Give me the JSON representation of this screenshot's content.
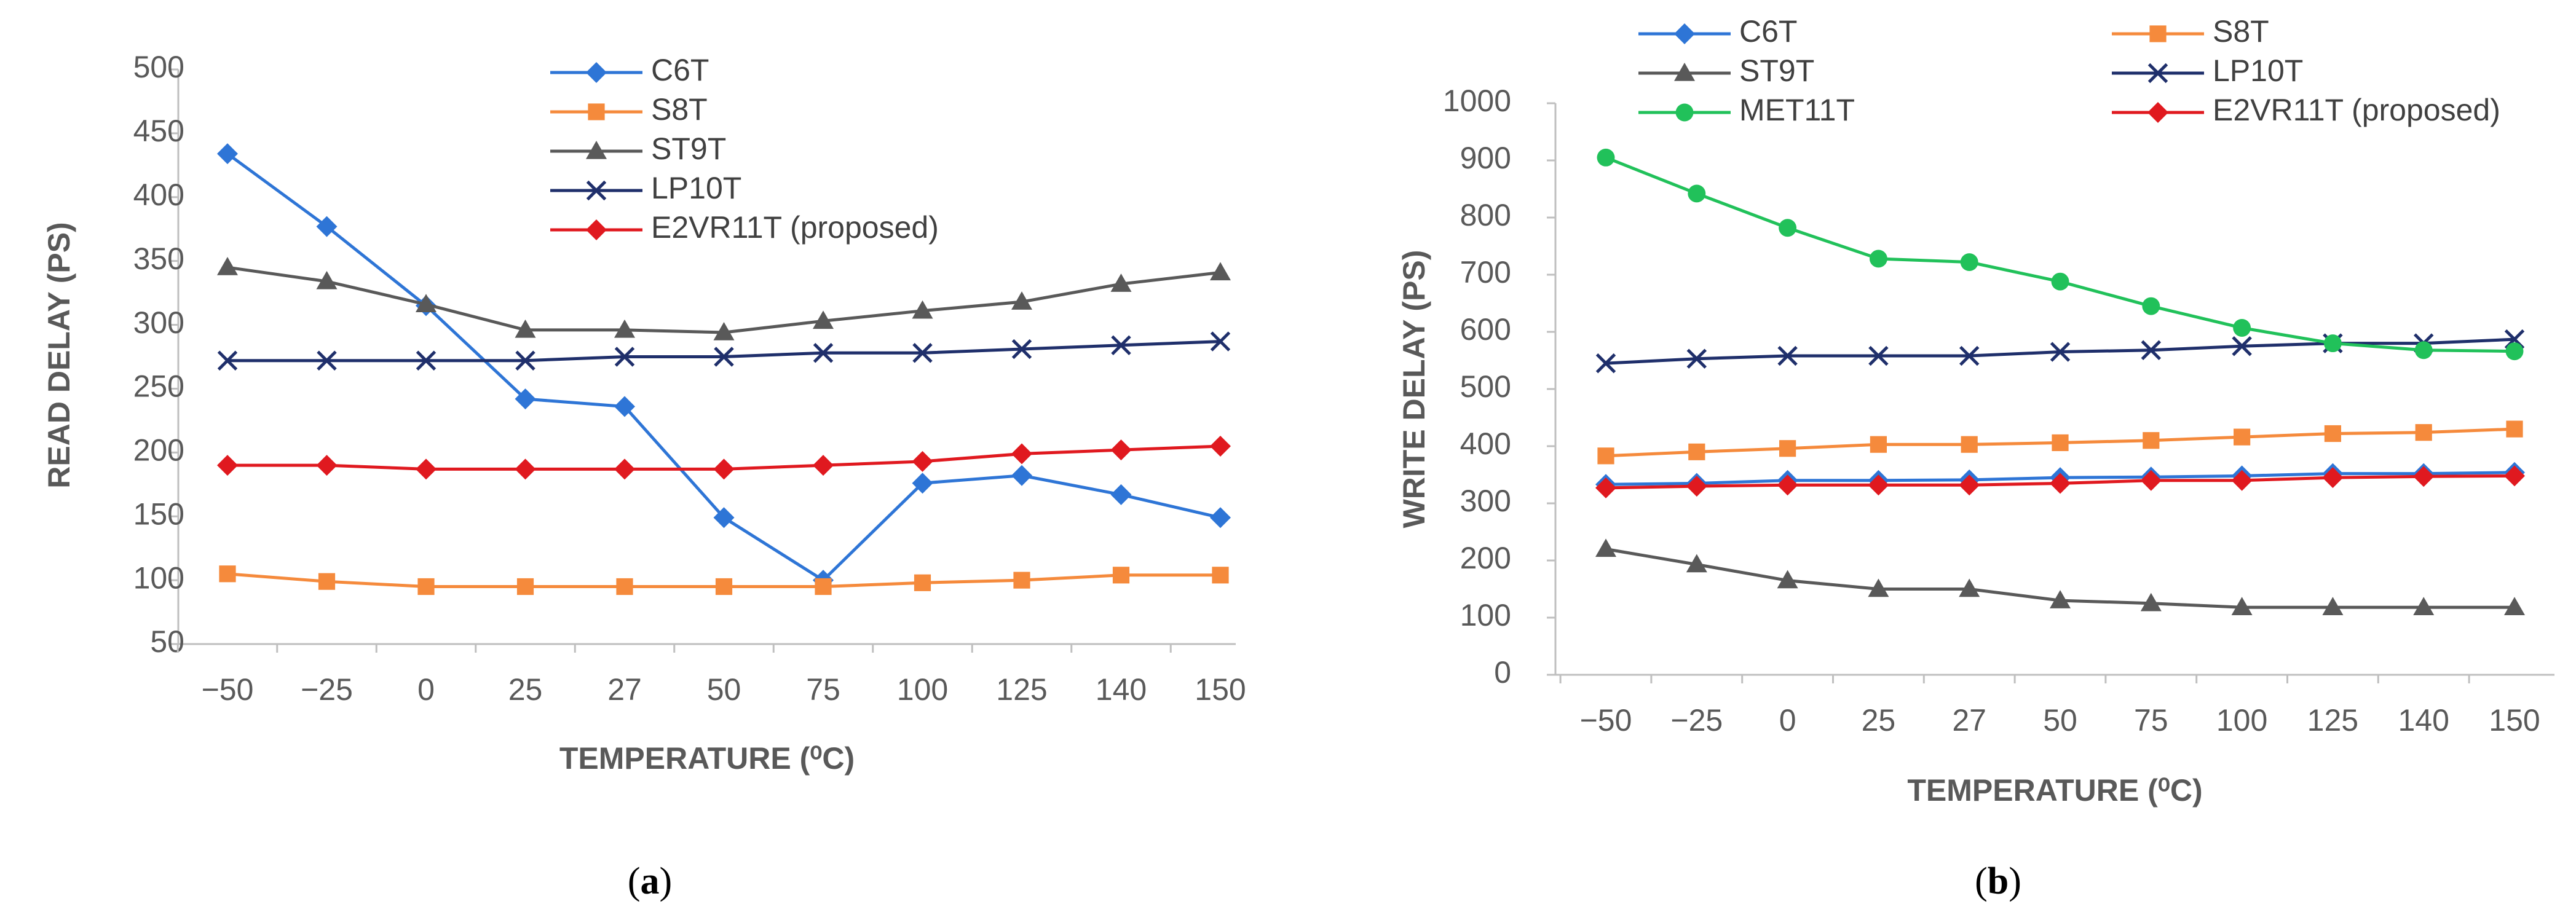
{
  "chart_data": [
    {
      "type": "line",
      "panel_label": "(a)",
      "panel_letter": "a",
      "title": "",
      "xlabel": "TEMPERATURE (⁰C)",
      "ylabel": "READ DELAY (PS)",
      "categories": [
        "−50",
        "−25",
        "0",
        "25",
        "27",
        "50",
        "75",
        "100",
        "125",
        "140",
        "150"
      ],
      "ylim": [
        50,
        500
      ],
      "ytick_step": 50,
      "grid": false,
      "legend_position": "top-center",
      "series": [
        {
          "name": "C6T",
          "color": "#2E75D6",
          "marker": "diamond",
          "values": [
            434,
            377,
            315,
            242,
            236,
            149,
            100,
            176,
            182,
            167,
            149
          ]
        },
        {
          "name": "S8T",
          "color": "#F58A3C",
          "marker": "square",
          "values": [
            105,
            99,
            95,
            95,
            95,
            95,
            95,
            98,
            100,
            104,
            104
          ]
        },
        {
          "name": "ST9T",
          "color": "#595959",
          "marker": "triangle",
          "values": [
            345,
            334,
            316,
            296,
            296,
            294,
            303,
            311,
            318,
            332,
            341
          ]
        },
        {
          "name": "LP10T",
          "color": "#1F2F6B",
          "marker": "x",
          "values": [
            272,
            272,
            272,
            272,
            275,
            275,
            278,
            278,
            281,
            284,
            287
          ]
        },
        {
          "name": "E2VR11T (proposed)",
          "color": "#E0191F",
          "marker": "diamond",
          "values": [
            190,
            190,
            187,
            187,
            187,
            187,
            190,
            193,
            199,
            202,
            205
          ]
        }
      ]
    },
    {
      "type": "line",
      "panel_label": "(b)",
      "panel_letter": "b",
      "title": "",
      "xlabel": "TEMPERATURE (⁰C)",
      "ylabel": "WRITE DELAY (PS)",
      "categories": [
        "−50",
        "−25",
        "0",
        "25",
        "27",
        "50",
        "75",
        "100",
        "125",
        "140",
        "150"
      ],
      "ylim": [
        0,
        1000
      ],
      "ytick_step": 100,
      "grid": false,
      "legend_position": "top",
      "series": [
        {
          "name": "C6T",
          "color": "#2E75D6",
          "marker": "diamond",
          "values": [
            333,
            335,
            340,
            340,
            341,
            345,
            346,
            348,
            352,
            352,
            354
          ]
        },
        {
          "name": "S8T",
          "color": "#F58A3C",
          "marker": "square",
          "values": [
            383,
            390,
            396,
            403,
            403,
            406,
            410,
            416,
            422,
            424,
            430
          ]
        },
        {
          "name": "ST9T",
          "color": "#595959",
          "marker": "triangle",
          "values": [
            220,
            193,
            165,
            150,
            150,
            130,
            125,
            118,
            118,
            118,
            118
          ]
        },
        {
          "name": "LP10T",
          "color": "#1F2F6B",
          "marker": "x",
          "values": [
            545,
            553,
            558,
            558,
            558,
            565,
            568,
            575,
            580,
            580,
            587
          ]
        },
        {
          "name": "MET11T",
          "color": "#21C15A",
          "marker": "circle",
          "values": [
            905,
            842,
            782,
            728,
            722,
            688,
            645,
            607,
            580,
            568,
            566
          ]
        },
        {
          "name": "E2VR11T (proposed)",
          "color": "#E0191F",
          "marker": "diamond",
          "values": [
            327,
            330,
            332,
            332,
            332,
            335,
            340,
            340,
            345,
            347,
            348
          ]
        }
      ]
    }
  ]
}
